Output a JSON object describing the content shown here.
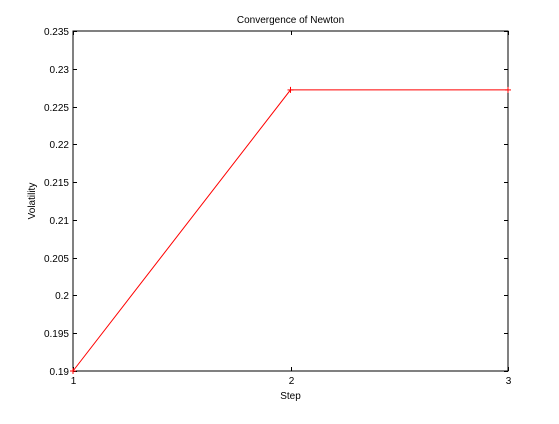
{
  "chart_data": {
    "type": "line",
    "title": "Convergence of Newton",
    "xlabel": "Step",
    "ylabel": "Volatility",
    "xlim": [
      1,
      3
    ],
    "ylim": [
      0.19,
      0.235
    ],
    "x_ticks": [
      1,
      2,
      3
    ],
    "x_tick_labels": [
      "1",
      "2",
      "3"
    ],
    "y_ticks": [
      0.19,
      0.195,
      0.2,
      0.205,
      0.21,
      0.215,
      0.22,
      0.225,
      0.23,
      0.235
    ],
    "y_tick_labels": [
      "0.19",
      "0.195",
      "0.2",
      "0.205",
      "0.21",
      "0.215",
      "0.22",
      "0.225",
      "0.23",
      "0.235"
    ],
    "grid": false,
    "series": [
      {
        "color": "#ff0000",
        "marker": "+",
        "x": [
          1,
          2,
          3
        ],
        "y": [
          0.19,
          0.2272,
          0.2272
        ]
      }
    ]
  }
}
